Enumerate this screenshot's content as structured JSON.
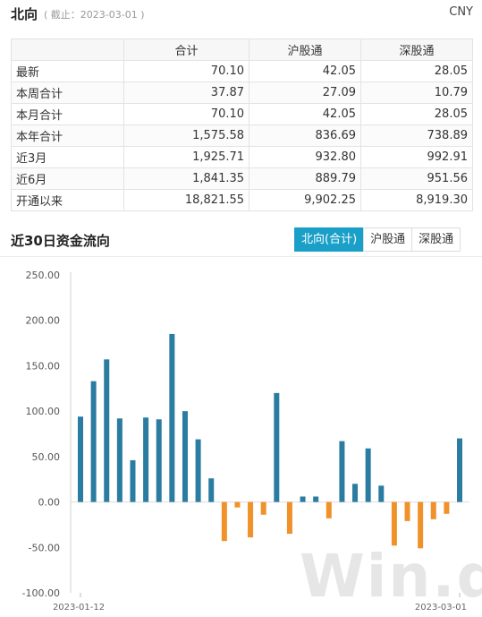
{
  "header": {
    "title": "北向",
    "asof": "( 截止：2023-03-01 )",
    "currency": "CNY"
  },
  "table": {
    "columns": [
      "",
      "合计",
      "沪股通",
      "深股通"
    ],
    "rows": [
      {
        "label": "最新",
        "total": "70.10",
        "sh": "42.05",
        "sz": "28.05"
      },
      {
        "label": "本周合计",
        "total": "37.87",
        "sh": "27.09",
        "sz": "10.79"
      },
      {
        "label": "本月合计",
        "total": "70.10",
        "sh": "42.05",
        "sz": "28.05"
      },
      {
        "label": "本年合计",
        "total": "1,575.58",
        "sh": "836.69",
        "sz": "738.89"
      },
      {
        "label": "近3月",
        "total": "1,925.71",
        "sh": "932.80",
        "sz": "992.91"
      },
      {
        "label": "近6月",
        "total": "1,841.35",
        "sh": "889.79",
        "sz": "951.56"
      },
      {
        "label": "开通以来",
        "total": "18,821.55",
        "sh": "9,902.25",
        "sz": "8,919.30"
      }
    ]
  },
  "section": {
    "title": "近30日资金流向",
    "tabs": [
      "北向(合计)",
      "沪股通",
      "深股通"
    ],
    "active_tab": 0
  },
  "watermark": "Win.d",
  "colors": {
    "positive": "#2a7ca0",
    "negative": "#f0912a",
    "tab_active": "#1aa0c8"
  },
  "chart_data": {
    "type": "bar",
    "ylim": [
      -100,
      250
    ],
    "yticks": [
      "250.00",
      "200.00",
      "150.00",
      "100.00",
      "50.00",
      "0.00",
      "-50.00",
      "-100.00"
    ],
    "xtick_labels": [
      "2023-01-12",
      "2023-03-01"
    ],
    "values": [
      94,
      133,
      157,
      92,
      46,
      93,
      91,
      185,
      100,
      69,
      26,
      -43,
      -6,
      -39,
      -14,
      120,
      -35,
      6,
      6,
      -18,
      67,
      20,
      59,
      18,
      -48,
      -21,
      -51,
      -19,
      -13,
      70
    ]
  }
}
